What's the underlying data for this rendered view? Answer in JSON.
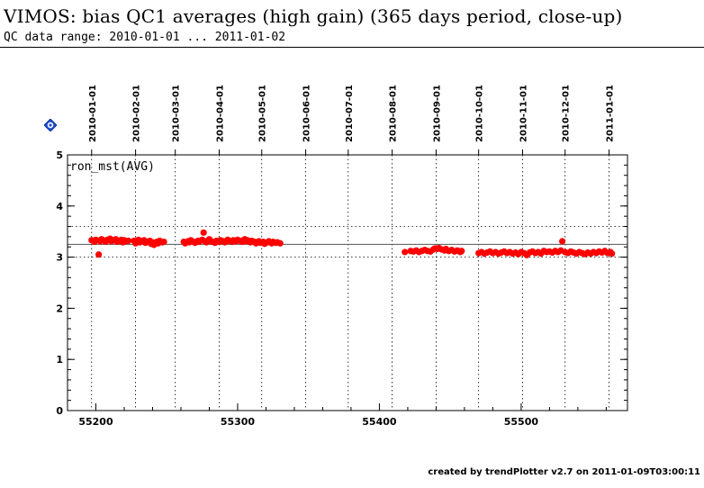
{
  "title": "VIMOS: bias QC1 averages (high gain) (365 days period, close-up)",
  "subtitle": "QC data range: 2010-01-01 ... 2011-01-02",
  "footer": "created by trendPlotter v2.7 on 2011-01-09T03:00:11",
  "help_icon": "help-diamond-icon",
  "colors": {
    "points": "#ff0000",
    "axes": "#000000",
    "grid": "#000000",
    "help_icon": "#1f4fd6"
  },
  "chart_data": {
    "type": "scatter",
    "panel_label": "ron_mst(AVG)",
    "xlim": [
      55180,
      55575
    ],
    "ylim": [
      0,
      5
    ],
    "x_ticks": [
      55200,
      55300,
      55400,
      55500
    ],
    "y_ticks": [
      0,
      1,
      2,
      3,
      4,
      5
    ],
    "date_ticks": [
      {
        "mjd": 55197,
        "label": "2010-01-01"
      },
      {
        "mjd": 55228,
        "label": "2010-02-01"
      },
      {
        "mjd": 55256,
        "label": "2010-03-01"
      },
      {
        "mjd": 55287,
        "label": "2010-04-01"
      },
      {
        "mjd": 55317,
        "label": "2010-05-01"
      },
      {
        "mjd": 55348,
        "label": "2010-06-01"
      },
      {
        "mjd": 55378,
        "label": "2010-07-01"
      },
      {
        "mjd": 55409,
        "label": "2010-08-01"
      },
      {
        "mjd": 55440,
        "label": "2010-09-01"
      },
      {
        "mjd": 55470,
        "label": "2010-10-01"
      },
      {
        "mjd": 55501,
        "label": "2010-11-01"
      },
      {
        "mjd": 55531,
        "label": "2010-12-01"
      },
      {
        "mjd": 55562,
        "label": "2011-01-01"
      }
    ],
    "reference_lines": {
      "mean": 3.25,
      "upper": 3.6,
      "lower": 3.0
    },
    "grid": "vertical dotted at month boundaries",
    "series": [
      {
        "points": [
          [
            55197,
            3.33
          ],
          [
            55199,
            3.3
          ],
          [
            55200,
            3.34
          ],
          [
            55202,
            3.05
          ],
          [
            55203,
            3.31
          ],
          [
            55204,
            3.35
          ],
          [
            55206,
            3.32
          ],
          [
            55207,
            3.3
          ],
          [
            55208,
            3.34
          ],
          [
            55210,
            3.36
          ],
          [
            55211,
            3.31
          ],
          [
            55212,
            3.33
          ],
          [
            55214,
            3.35
          ],
          [
            55215,
            3.3
          ],
          [
            55216,
            3.32
          ],
          [
            55218,
            3.34
          ],
          [
            55219,
            3.29
          ],
          [
            55220,
            3.33
          ],
          [
            55221,
            3.31
          ],
          [
            55223,
            3.32
          ],
          [
            55227,
            3.32
          ],
          [
            55228,
            3.27
          ],
          [
            55230,
            3.34
          ],
          [
            55231,
            3.29
          ],
          [
            55232,
            3.31
          ],
          [
            55234,
            3.33
          ],
          [
            55235,
            3.28
          ],
          [
            55236,
            3.3
          ],
          [
            55238,
            3.32
          ],
          [
            55239,
            3.26
          ],
          [
            55240,
            3.29
          ],
          [
            55241,
            3.24
          ],
          [
            55243,
            3.3
          ],
          [
            55244,
            3.27
          ],
          [
            55245,
            3.32
          ],
          [
            55247,
            3.29
          ],
          [
            55248,
            3.3
          ],
          [
            55262,
            3.3
          ],
          [
            55263,
            3.27
          ],
          [
            55265,
            3.31
          ],
          [
            55266,
            3.29
          ],
          [
            55267,
            3.33
          ],
          [
            55269,
            3.3
          ],
          [
            55270,
            3.28
          ],
          [
            55272,
            3.32
          ],
          [
            55273,
            3.3
          ],
          [
            55275,
            3.34
          ],
          [
            55276,
            3.48
          ],
          [
            55277,
            3.31
          ],
          [
            55278,
            3.29
          ],
          [
            55280,
            3.35
          ],
          [
            55281,
            3.32
          ],
          [
            55282,
            3.3
          ],
          [
            55284,
            3.28
          ],
          [
            55285,
            3.32
          ],
          [
            55287,
            3.3
          ],
          [
            55288,
            3.33
          ],
          [
            55290,
            3.31
          ],
          [
            55291,
            3.29
          ],
          [
            55293,
            3.34
          ],
          [
            55294,
            3.32
          ],
          [
            55296,
            3.3
          ],
          [
            55297,
            3.33
          ],
          [
            55299,
            3.31
          ],
          [
            55300,
            3.34
          ],
          [
            55302,
            3.32
          ],
          [
            55303,
            3.3
          ],
          [
            55305,
            3.35
          ],
          [
            55306,
            3.31
          ],
          [
            55307,
            3.33
          ],
          [
            55309,
            3.29
          ],
          [
            55310,
            3.32
          ],
          [
            55312,
            3.3
          ],
          [
            55313,
            3.27
          ],
          [
            55315,
            3.31
          ],
          [
            55316,
            3.28
          ],
          [
            55318,
            3.3
          ],
          [
            55319,
            3.26
          ],
          [
            55321,
            3.29
          ],
          [
            55322,
            3.31
          ],
          [
            55324,
            3.27
          ],
          [
            55325,
            3.3
          ],
          [
            55327,
            3.28
          ],
          [
            55328,
            3.29
          ],
          [
            55330,
            3.27
          ],
          [
            55418,
            3.1
          ],
          [
            55422,
            3.12
          ],
          [
            55424,
            3.11
          ],
          [
            55426,
            3.13
          ],
          [
            55428,
            3.1
          ],
          [
            55430,
            3.12
          ],
          [
            55432,
            3.14
          ],
          [
            55434,
            3.12
          ],
          [
            55436,
            3.11
          ],
          [
            55438,
            3.15
          ],
          [
            55439,
            3.17
          ],
          [
            55441,
            3.16
          ],
          [
            55442,
            3.18
          ],
          [
            55444,
            3.15
          ],
          [
            55446,
            3.13
          ],
          [
            55447,
            3.16
          ],
          [
            55449,
            3.12
          ],
          [
            55451,
            3.14
          ],
          [
            55453,
            3.11
          ],
          [
            55455,
            3.13
          ],
          [
            55457,
            3.1
          ],
          [
            55458,
            3.12
          ],
          [
            55470,
            3.08
          ],
          [
            55472,
            3.1
          ],
          [
            55474,
            3.07
          ],
          [
            55476,
            3.09
          ],
          [
            55478,
            3.11
          ],
          [
            55480,
            3.08
          ],
          [
            55482,
            3.1
          ],
          [
            55484,
            3.07
          ],
          [
            55486,
            3.09
          ],
          [
            55488,
            3.11
          ],
          [
            55490,
            3.08
          ],
          [
            55492,
            3.1
          ],
          [
            55494,
            3.07
          ],
          [
            55496,
            3.09
          ],
          [
            55498,
            3.06
          ],
          [
            55500,
            3.1
          ],
          [
            55502,
            3.08
          ],
          [
            55504,
            3.04
          ],
          [
            55506,
            3.09
          ],
          [
            55508,
            3.11
          ],
          [
            55510,
            3.08
          ],
          [
            55512,
            3.1
          ],
          [
            55514,
            3.07
          ],
          [
            55516,
            3.12
          ],
          [
            55518,
            3.1
          ],
          [
            55520,
            3.11
          ],
          [
            55522,
            3.09
          ],
          [
            55524,
            3.12
          ],
          [
            55526,
            3.1
          ],
          [
            55528,
            3.13
          ],
          [
            55529,
            3.31
          ],
          [
            55531,
            3.1
          ],
          [
            55533,
            3.08
          ],
          [
            55535,
            3.11
          ],
          [
            55537,
            3.09
          ],
          [
            55539,
            3.07
          ],
          [
            55541,
            3.1
          ],
          [
            55543,
            3.08
          ],
          [
            55545,
            3.06
          ],
          [
            55547,
            3.09
          ],
          [
            55549,
            3.07
          ],
          [
            55551,
            3.1
          ],
          [
            55553,
            3.08
          ],
          [
            55555,
            3.11
          ],
          [
            55557,
            3.09
          ],
          [
            55559,
            3.12
          ],
          [
            55561,
            3.08
          ],
          [
            55563,
            3.1
          ],
          [
            55564,
            3.07
          ]
        ]
      }
    ]
  }
}
